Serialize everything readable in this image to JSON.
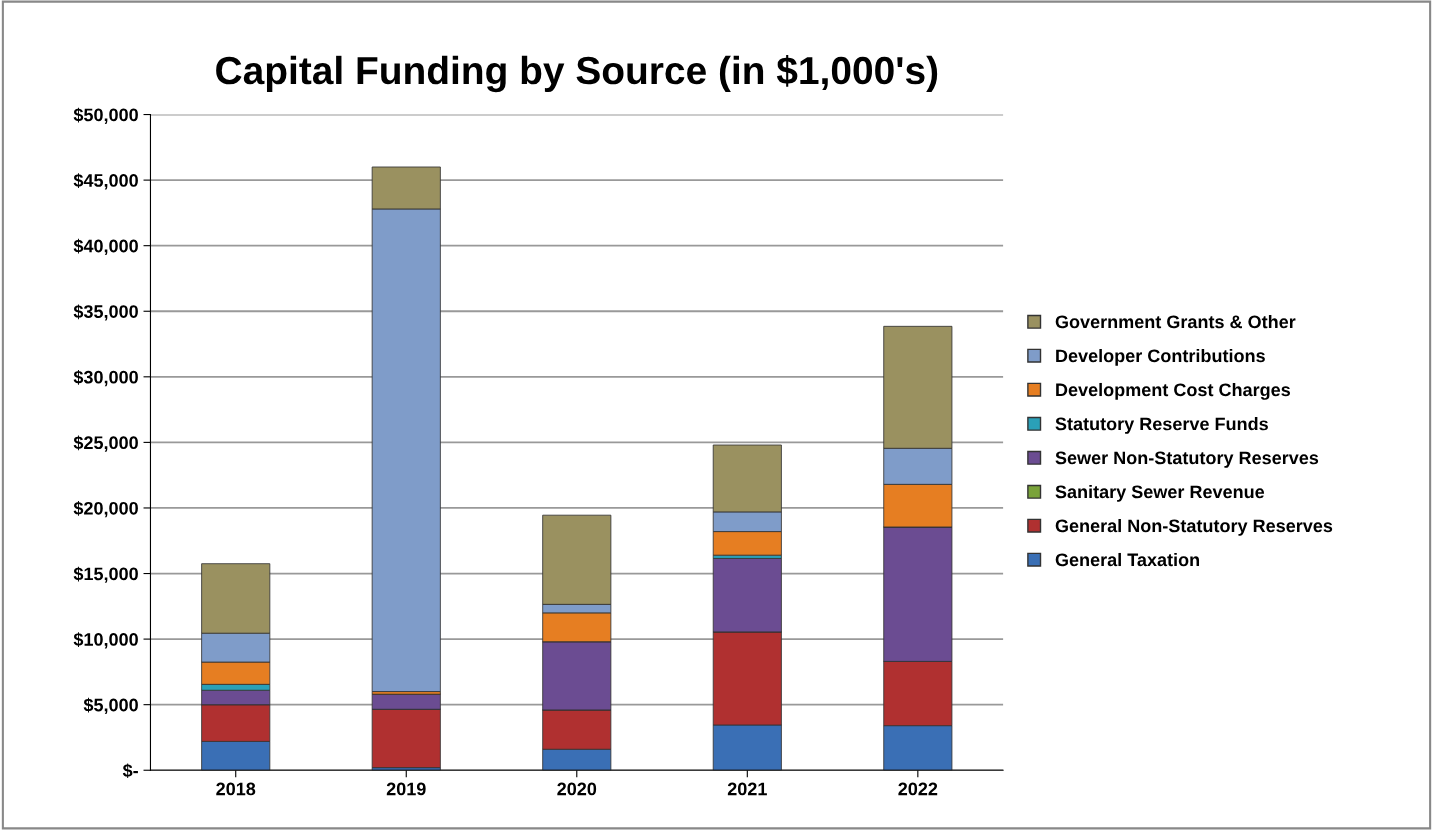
{
  "chart_data": {
    "type": "bar",
    "title": "Capital Funding by Source (in $1,000's)",
    "stacked": true,
    "categories": [
      "2018",
      "2019",
      "2020",
      "2021",
      "2022"
    ],
    "series": [
      {
        "name": "General Taxation",
        "color": "#3a6fb5",
        "values": [
          2200,
          200,
          1600,
          3450,
          3400
        ]
      },
      {
        "name": "General Non-Statutory Reserves",
        "color": "#b03030",
        "values": [
          2800,
          4450,
          3000,
          7100,
          4900
        ]
      },
      {
        "name": "Sanitary Sewer Revenue",
        "color": "#7aa33a",
        "values": [
          0,
          0,
          0,
          0,
          0
        ]
      },
      {
        "name": "Sewer Non-Statutory Reserves",
        "color": "#6b4c92",
        "values": [
          1100,
          1150,
          5200,
          5600,
          10250
        ]
      },
      {
        "name": "Statutory Reserve Funds",
        "color": "#2aa0b8",
        "values": [
          450,
          0,
          0,
          250,
          0
        ]
      },
      {
        "name": "Development Cost Charges",
        "color": "#e67e22",
        "values": [
          1700,
          200,
          2200,
          1800,
          3250
        ]
      },
      {
        "name": "Developer Contributions",
        "color": "#7f9cc9",
        "values": [
          2200,
          36800,
          650,
          1500,
          2750
        ]
      },
      {
        "name": "Government Grants & Other",
        "color": "#9a9160",
        "values": [
          5300,
          3200,
          6800,
          5100,
          9300
        ]
      }
    ],
    "ylim": [
      0,
      50000
    ],
    "yticks": [
      {
        "value": 0,
        "label": "$-"
      },
      {
        "value": 5000,
        "label": "$5,000"
      },
      {
        "value": 10000,
        "label": "$10,000"
      },
      {
        "value": 15000,
        "label": "$15,000"
      },
      {
        "value": 20000,
        "label": "$20,000"
      },
      {
        "value": 25000,
        "label": "$25,000"
      },
      {
        "value": 30000,
        "label": "$30,000"
      },
      {
        "value": 35000,
        "label": "$35,000"
      },
      {
        "value": 40000,
        "label": "$40,000"
      },
      {
        "value": 45000,
        "label": "$45,000"
      },
      {
        "value": 50000,
        "label": "$50,000"
      }
    ],
    "grid": "y",
    "legend": "right"
  }
}
